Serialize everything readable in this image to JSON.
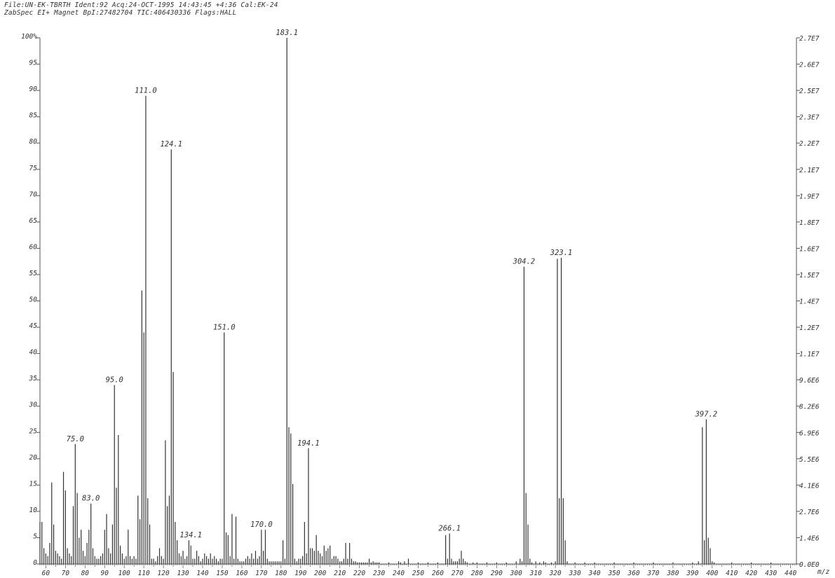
{
  "header": {
    "line1": "File:UN-EK-TBRTH Ident:92 Acq:24-OCT-1995 14:43:45 +4:36 Cal:EK-24",
    "line2": "ZabSpec EI+ Magnet BpI:27482704 TIC:406430336 Flags:HALL"
  },
  "chart_data": {
    "type": "bar",
    "xlabel": "m/z",
    "ylabel": "",
    "xlim": [
      57,
      443
    ],
    "ylim": [
      0,
      100
    ],
    "x_ticks": [
      60,
      70,
      80,
      90,
      100,
      110,
      120,
      130,
      140,
      150,
      160,
      170,
      180,
      190,
      200,
      210,
      220,
      230,
      240,
      250,
      260,
      270,
      280,
      290,
      300,
      310,
      320,
      330,
      340,
      350,
      360,
      370,
      380,
      390,
      400,
      410,
      420,
      430,
      440
    ],
    "y_ticks": [
      {
        "value": 100,
        "label": "100%"
      },
      {
        "value": 95,
        "label": "95"
      },
      {
        "value": 90,
        "label": "90"
      },
      {
        "value": 85,
        "label": "85"
      },
      {
        "value": 80,
        "label": "80"
      },
      {
        "value": 75,
        "label": "75"
      },
      {
        "value": 70,
        "label": "70"
      },
      {
        "value": 65,
        "label": "65"
      },
      {
        "value": 60,
        "label": "60"
      },
      {
        "value": 55,
        "label": "55"
      },
      {
        "value": 50,
        "label": "50"
      },
      {
        "value": 45,
        "label": "45"
      },
      {
        "value": 40,
        "label": "40"
      },
      {
        "value": 35,
        "label": "35"
      },
      {
        "value": 30,
        "label": "30"
      },
      {
        "value": 25,
        "label": "25"
      },
      {
        "value": 20,
        "label": "20"
      },
      {
        "value": 15,
        "label": "15"
      },
      {
        "value": 10,
        "label": "10"
      },
      {
        "value": 5,
        "label": "5"
      },
      {
        "value": 0,
        "label": "0"
      }
    ],
    "y2_ticks": [
      {
        "value": 100,
        "label": "2.7E7"
      },
      {
        "value": 95,
        "label": "2.6E7"
      },
      {
        "value": 90,
        "label": "2.5E7"
      },
      {
        "value": 85,
        "label": "2.3E7"
      },
      {
        "value": 80,
        "label": "2.2E7"
      },
      {
        "value": 75,
        "label": "2.1E7"
      },
      {
        "value": 70,
        "label": "1.9E7"
      },
      {
        "value": 65,
        "label": "1.8E7"
      },
      {
        "value": 60,
        "label": "1.6E7"
      },
      {
        "value": 55,
        "label": "1.5E7"
      },
      {
        "value": 50,
        "label": "1.4E7"
      },
      {
        "value": 45,
        "label": "1.2E7"
      },
      {
        "value": 40,
        "label": "1.1E7"
      },
      {
        "value": 35,
        "label": "9.6E6"
      },
      {
        "value": 30,
        "label": "8.2E6"
      },
      {
        "value": 25,
        "label": "6.9E6"
      },
      {
        "value": 20,
        "label": "5.5E6"
      },
      {
        "value": 15,
        "label": "4.1E6"
      },
      {
        "value": 10,
        "label": "2.7E6"
      },
      {
        "value": 5,
        "label": "1.4E6"
      },
      {
        "value": 0,
        "label": "0.0E0"
      }
    ],
    "peaks": [
      [
        57,
        8
      ],
      [
        58,
        8
      ],
      [
        59,
        3
      ],
      [
        60,
        2
      ],
      [
        61,
        1.5
      ],
      [
        62,
        4
      ],
      [
        63,
        15.5
      ],
      [
        64,
        7.5
      ],
      [
        65,
        2.5
      ],
      [
        66,
        2
      ],
      [
        67,
        1.5
      ],
      [
        68,
        1
      ],
      [
        69,
        17.5
      ],
      [
        70,
        14
      ],
      [
        71,
        3
      ],
      [
        72,
        2
      ],
      [
        73,
        1.5
      ],
      [
        74,
        11
      ],
      [
        75,
        22.8
      ],
      [
        76,
        13.5
      ],
      [
        77,
        5
      ],
      [
        78,
        6.5
      ],
      [
        79,
        2.5
      ],
      [
        80,
        1.5
      ],
      [
        81,
        4
      ],
      [
        82,
        6.5
      ],
      [
        83,
        11.5
      ],
      [
        84,
        3
      ],
      [
        85,
        1.5
      ],
      [
        86,
        1
      ],
      [
        87,
        1
      ],
      [
        88,
        1.5
      ],
      [
        89,
        2
      ],
      [
        90,
        6.5
      ],
      [
        91,
        9.5
      ],
      [
        92,
        3
      ],
      [
        93,
        2
      ],
      [
        94,
        7.5
      ],
      [
        95,
        34
      ],
      [
        96,
        14.5
      ],
      [
        97,
        24.5
      ],
      [
        98,
        3.5
      ],
      [
        99,
        2
      ],
      [
        100,
        1
      ],
      [
        101,
        1.5
      ],
      [
        102,
        6.5
      ],
      [
        103,
        1.5
      ],
      [
        104,
        1
      ],
      [
        105,
        1.5
      ],
      [
        106,
        1
      ],
      [
        107,
        13
      ],
      [
        108,
        8.5
      ],
      [
        109,
        52
      ],
      [
        110,
        44
      ],
      [
        111,
        89
      ],
      [
        112,
        12.5
      ],
      [
        113,
        7.5
      ],
      [
        114,
        1
      ],
      [
        115,
        1
      ],
      [
        116,
        0.5
      ],
      [
        117,
        1.5
      ],
      [
        118,
        3
      ],
      [
        119,
        1.5
      ],
      [
        120,
        1
      ],
      [
        121,
        23.5
      ],
      [
        122,
        11
      ],
      [
        123,
        13
      ],
      [
        124,
        78.8
      ],
      [
        125,
        36.5
      ],
      [
        126,
        8
      ],
      [
        127,
        4.5
      ],
      [
        128,
        2
      ],
      [
        129,
        1.5
      ],
      [
        130,
        2.5
      ],
      [
        131,
        1
      ],
      [
        132,
        1.5
      ],
      [
        133,
        4.5
      ],
      [
        134,
        3.5
      ],
      [
        135,
        1
      ],
      [
        136,
        1
      ],
      [
        137,
        2.5
      ],
      [
        138,
        1.5
      ],
      [
        139,
        0.5
      ],
      [
        140,
        1
      ],
      [
        141,
        2
      ],
      [
        142,
        1.5
      ],
      [
        143,
        1
      ],
      [
        144,
        2
      ],
      [
        145,
        1
      ],
      [
        146,
        1.5
      ],
      [
        147,
        1
      ],
      [
        148,
        0.5
      ],
      [
        149,
        1
      ],
      [
        150,
        1
      ],
      [
        151,
        44
      ],
      [
        152,
        6
      ],
      [
        153,
        5.5
      ],
      [
        154,
        1.5
      ],
      [
        155,
        9.5
      ],
      [
        156,
        1
      ],
      [
        157,
        9
      ],
      [
        158,
        1
      ],
      [
        159,
        0.5
      ],
      [
        160,
        0.5
      ],
      [
        161,
        0.5
      ],
      [
        162,
        1
      ],
      [
        163,
        1.5
      ],
      [
        164,
        1
      ],
      [
        165,
        2
      ],
      [
        166,
        1
      ],
      [
        167,
        2.5
      ],
      [
        168,
        1
      ],
      [
        169,
        1.5
      ],
      [
        170,
        6.5
      ],
      [
        171,
        2.5
      ],
      [
        172,
        6.5
      ],
      [
        173,
        1
      ],
      [
        174,
        0.5
      ],
      [
        175,
        0.5
      ],
      [
        176,
        0.5
      ],
      [
        177,
        0.5
      ],
      [
        178,
        0.5
      ],
      [
        179,
        0.5
      ],
      [
        180,
        0.5
      ],
      [
        181,
        4.5
      ],
      [
        182,
        1
      ],
      [
        183,
        100
      ],
      [
        184,
        26
      ],
      [
        185,
        24.8
      ],
      [
        186,
        15.2
      ],
      [
        187,
        1
      ],
      [
        188,
        0.5
      ],
      [
        189,
        1
      ],
      [
        190,
        1
      ],
      [
        191,
        1.5
      ],
      [
        192,
        8
      ],
      [
        193,
        2
      ],
      [
        194,
        22
      ],
      [
        195,
        3
      ],
      [
        196,
        3
      ],
      [
        197,
        2.5
      ],
      [
        198,
        5.5
      ],
      [
        199,
        2.5
      ],
      [
        200,
        2
      ],
      [
        201,
        1.5
      ],
      [
        202,
        3.5
      ],
      [
        203,
        2.5
      ],
      [
        204,
        3
      ],
      [
        205,
        3.5
      ],
      [
        206,
        1
      ],
      [
        207,
        1.5
      ],
      [
        208,
        1.5
      ],
      [
        209,
        1
      ],
      [
        210,
        0.5
      ],
      [
        211,
        0.5
      ],
      [
        212,
        1
      ],
      [
        213,
        4
      ],
      [
        214,
        1
      ],
      [
        215,
        4
      ],
      [
        216,
        1
      ],
      [
        217,
        0.5
      ],
      [
        218,
        0.5
      ],
      [
        219,
        0.3
      ],
      [
        220,
        0.3
      ],
      [
        221,
        0.3
      ],
      [
        222,
        0.3
      ],
      [
        223,
        0.3
      ],
      [
        224,
        0.3
      ],
      [
        225,
        1
      ],
      [
        226,
        0.3
      ],
      [
        227,
        0.5
      ],
      [
        228,
        0.3
      ],
      [
        229,
        0.3
      ],
      [
        230,
        0.3
      ],
      [
        235,
        0.3
      ],
      [
        240,
        0.5
      ],
      [
        241,
        0.3
      ],
      [
        243,
        0.5
      ],
      [
        245,
        1
      ],
      [
        250,
        0.3
      ],
      [
        255,
        0.3
      ],
      [
        260,
        0.3
      ],
      [
        264,
        5.5
      ],
      [
        265,
        1
      ],
      [
        266,
        5.8
      ],
      [
        267,
        1
      ],
      [
        268,
        0.5
      ],
      [
        269,
        0.5
      ],
      [
        270,
        0.5
      ],
      [
        271,
        1
      ],
      [
        272,
        2.5
      ],
      [
        273,
        1
      ],
      [
        274,
        0.5
      ],
      [
        275,
        0.3
      ],
      [
        278,
        0.3
      ],
      [
        280,
        0.3
      ],
      [
        285,
        0.3
      ],
      [
        290,
        0.3
      ],
      [
        295,
        0.3
      ],
      [
        300,
        0.5
      ],
      [
        302,
        1
      ],
      [
        303,
        0.5
      ],
      [
        304,
        56.5
      ],
      [
        305,
        13.5
      ],
      [
        306,
        7.5
      ],
      [
        307,
        1
      ],
      [
        308,
        0.3
      ],
      [
        310,
        0.5
      ],
      [
        312,
        0.3
      ],
      [
        314,
        0.5
      ],
      [
        315,
        0.3
      ],
      [
        318,
        0.3
      ],
      [
        320,
        0.5
      ],
      [
        321,
        58
      ],
      [
        322,
        12.5
      ],
      [
        323,
        58.2
      ],
      [
        324,
        12.5
      ],
      [
        325,
        4.5
      ],
      [
        326,
        0.5
      ],
      [
        330,
        0.3
      ],
      [
        335,
        0.3
      ],
      [
        340,
        0.3
      ],
      [
        350,
        0.3
      ],
      [
        360,
        0.3
      ],
      [
        370,
        0.3
      ],
      [
        380,
        0.3
      ],
      [
        390,
        0.3
      ],
      [
        393,
        0.5
      ],
      [
        395,
        26
      ],
      [
        396,
        4.5
      ],
      [
        397,
        27.5
      ],
      [
        398,
        5
      ],
      [
        399,
        3
      ],
      [
        400,
        0.5
      ],
      [
        401,
        0.3
      ],
      [
        410,
        0.3
      ],
      [
        420,
        0.3
      ],
      [
        430,
        0.3
      ]
    ],
    "annotations": [
      {
        "x": 75,
        "y": 22.8,
        "label": "75.0"
      },
      {
        "x": 83,
        "y": 11.5,
        "label": "83.0"
      },
      {
        "x": 95,
        "y": 34,
        "label": "95.0"
      },
      {
        "x": 111,
        "y": 89,
        "label": "111.0"
      },
      {
        "x": 124,
        "y": 78.8,
        "label": "124.1"
      },
      {
        "x": 134,
        "y": 4.5,
        "label": "134.1"
      },
      {
        "x": 151,
        "y": 44,
        "label": "151.0"
      },
      {
        "x": 170,
        "y": 6.5,
        "label": "170.0"
      },
      {
        "x": 183,
        "y": 100,
        "label": "183.1"
      },
      {
        "x": 194,
        "y": 22,
        "label": "194.1"
      },
      {
        "x": 266,
        "y": 5.8,
        "label": "266.1"
      },
      {
        "x": 304,
        "y": 56.5,
        "label": "304.2"
      },
      {
        "x": 323,
        "y": 58.2,
        "label": "323.1"
      },
      {
        "x": 397,
        "y": 27.5,
        "label": "397.2"
      }
    ]
  }
}
